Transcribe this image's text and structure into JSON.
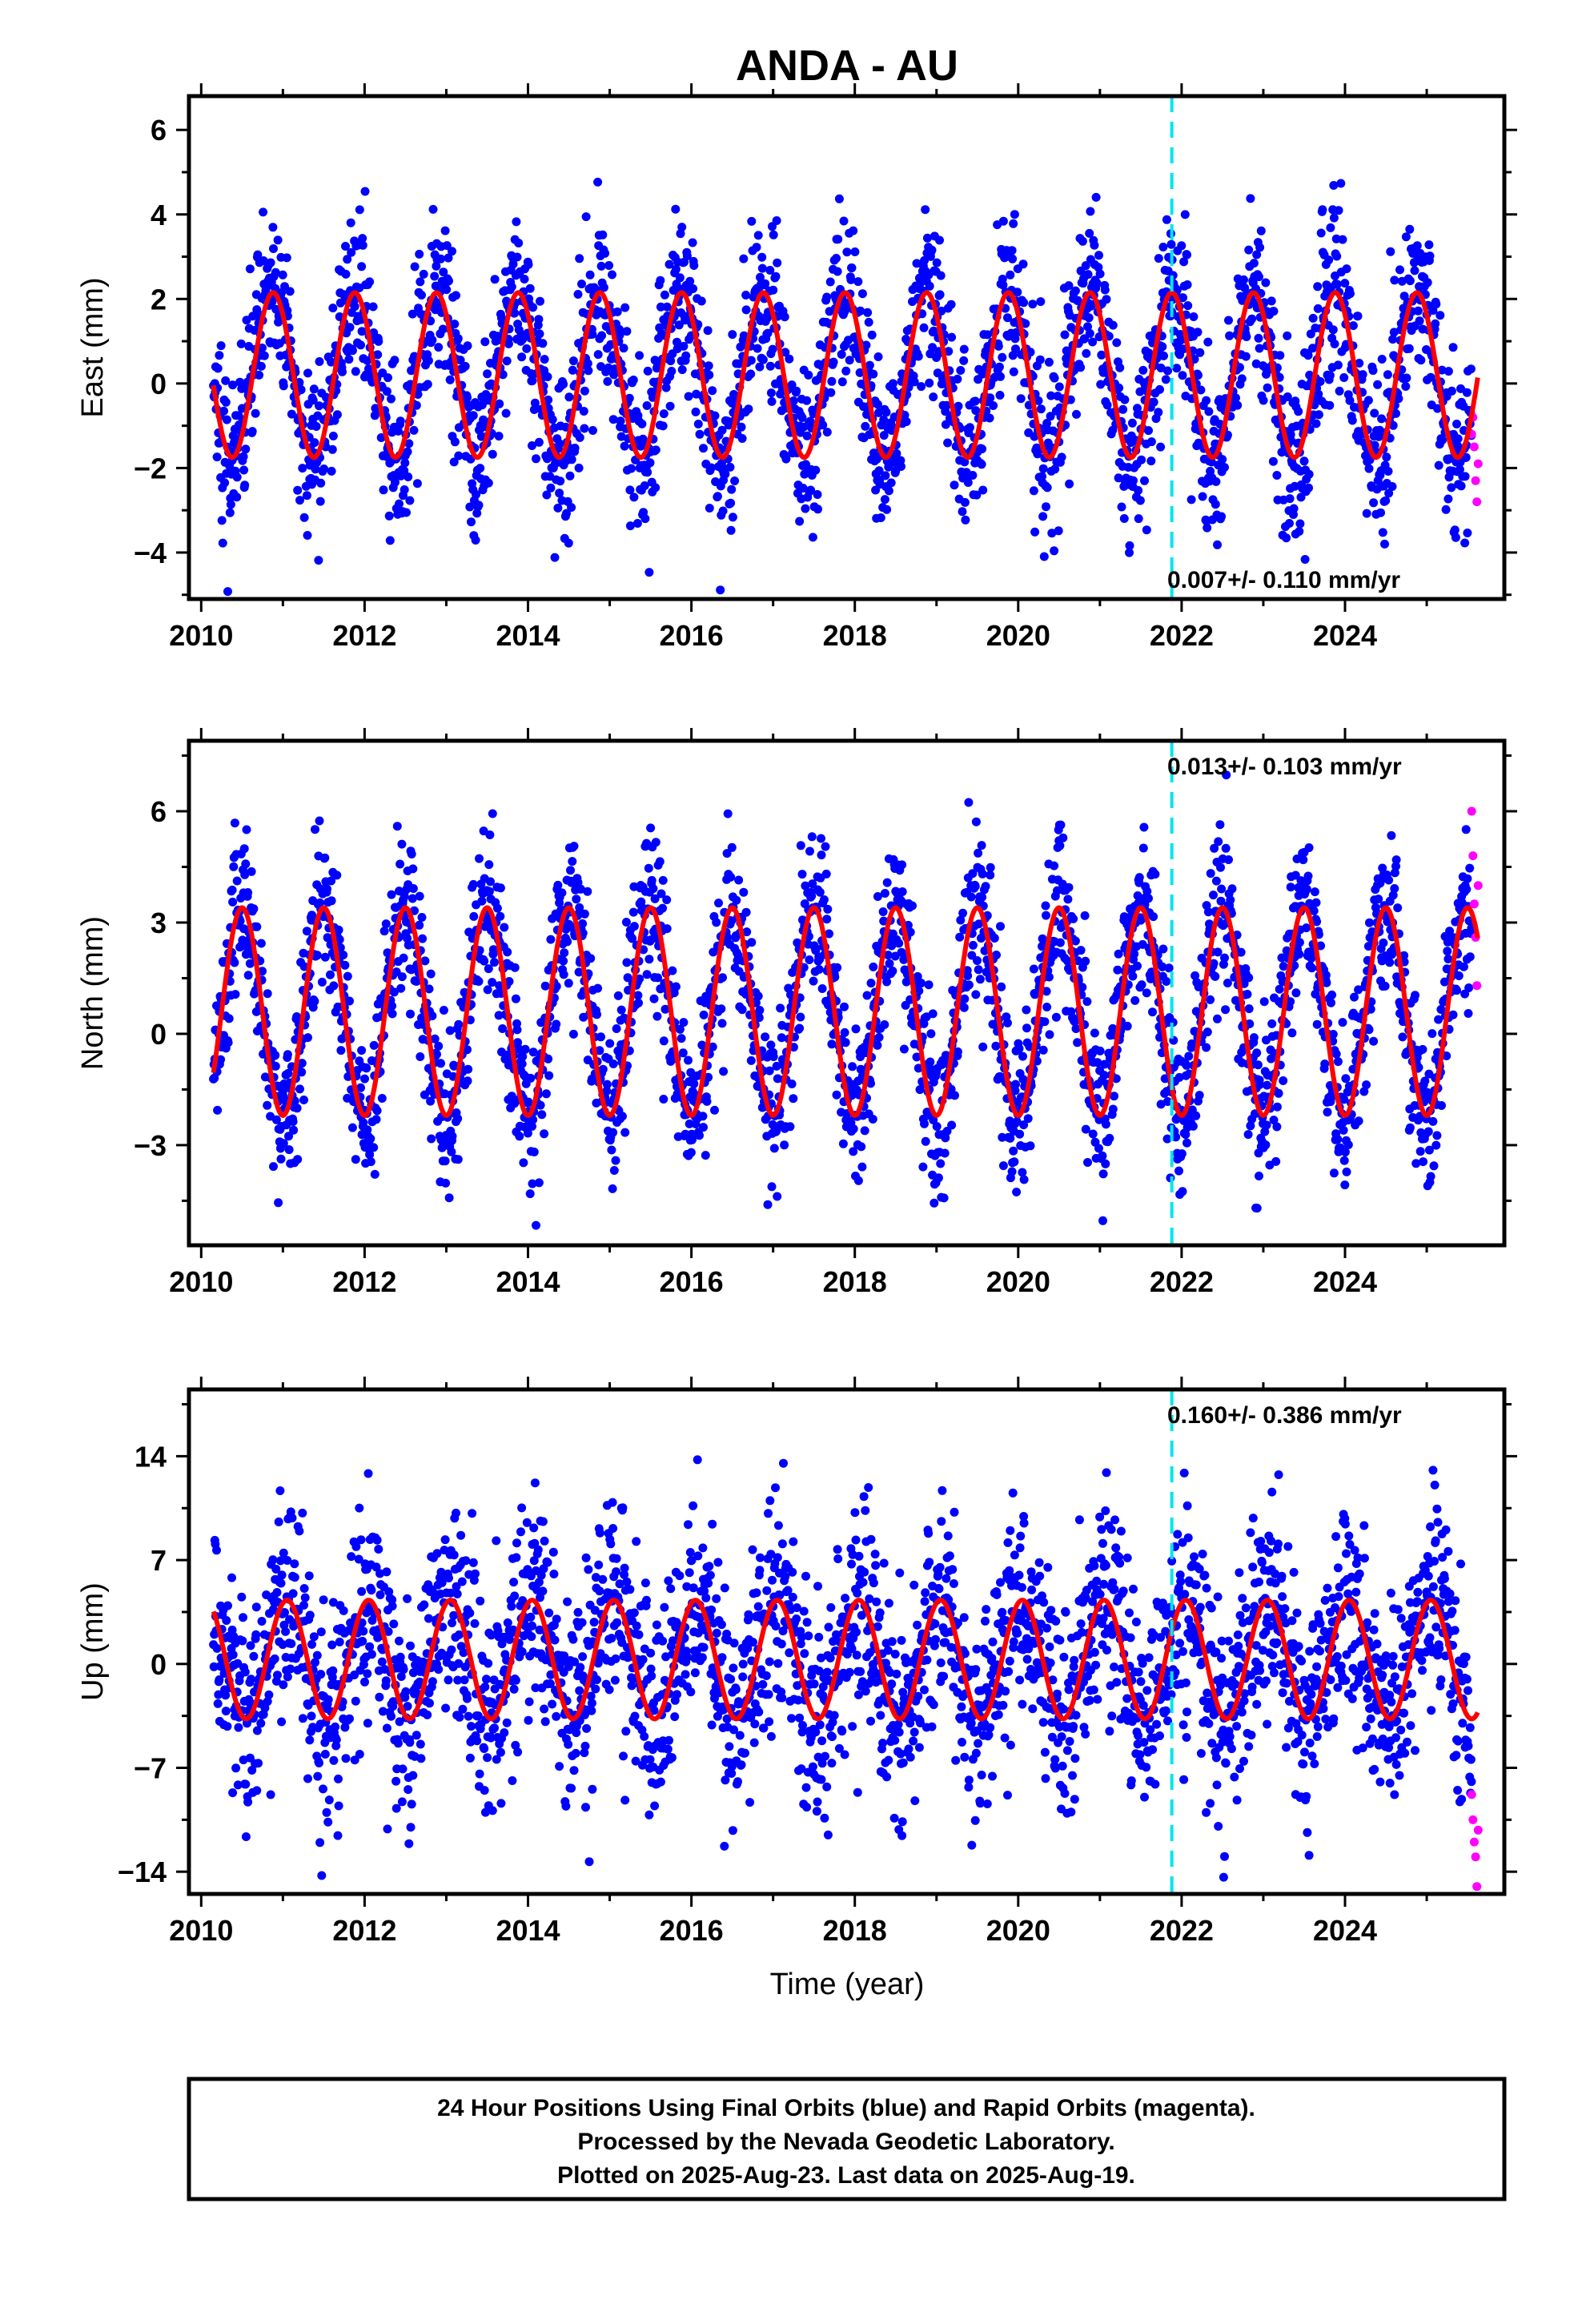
{
  "chart_data": {
    "type": "scatter",
    "title": "ANDA - AU",
    "xlabel": "Time (year)",
    "xlim": [
      2009.85,
      2025.95
    ],
    "x_ticks": [
      2010,
      2012,
      2014,
      2016,
      2018,
      2020,
      2022,
      2024
    ],
    "x_minor_step": 1,
    "data_start": 2010.15,
    "final_end": 2025.55,
    "rapid_end": 2025.63,
    "equipment_change_year": 2021.88,
    "colors": {
      "final": "#0000ff",
      "rapid": "#ff00ff",
      "model": "#ff0000",
      "event": "#00e5ee"
    },
    "series": [
      {
        "name": "Final Orbits (blue)",
        "color": "#0000ff"
      },
      {
        "name": "Rapid Orbits (magenta)",
        "color": "#ff00ff"
      },
      {
        "name": "Model fit",
        "color": "#ff0000"
      }
    ],
    "panels": [
      {
        "key": "east",
        "ylabel": "East (mm)",
        "ylim": [
          -5.1,
          6.8
        ],
        "y_ticks": [
          -4,
          -2,
          0,
          2,
          4,
          6
        ],
        "y_minor_step": 1,
        "rate_label": "0.007+/- 0.110 mm/yr",
        "rate_position": "bottom-right",
        "seasonal": {
          "offset": 0.2,
          "amplitude": 1.95,
          "peak_phase": 0.88
        },
        "noise_sd": 1.0,
        "rapid_values": [
          -1.2,
          -0.8,
          -1.5,
          -2.3,
          -2.8,
          -1.9
        ]
      },
      {
        "key": "north",
        "ylabel": "North (mm)",
        "ylim": [
          -5.7,
          7.9
        ],
        "y_ticks": [
          -3,
          0,
          3,
          6
        ],
        "y_minor_step": 1.5,
        "rate_label": "0.013+/- 0.103 mm/yr",
        "rate_position": "top-right",
        "seasonal": {
          "offset": 0.6,
          "amplitude": 2.8,
          "peak_phase": 0.5
        },
        "noise_sd": 1.1,
        "rapid_values": [
          6.0,
          4.8,
          3.5,
          2.6,
          1.3,
          4.0
        ]
      },
      {
        "key": "up",
        "ylabel": "Up (mm)",
        "ylim": [
          -15.5,
          18.5
        ],
        "y_ticks": [
          -14,
          -7,
          0,
          7,
          14
        ],
        "y_minor_step": 3.5,
        "rate_label": "0.160+/- 0.386 mm/yr",
        "rate_position": "top-right",
        "seasonal": {
          "offset": 0.3,
          "amplitude": 4.0,
          "peak_phase": 0.05
        },
        "noise_sd": 3.6,
        "rapid_values": [
          -8.8,
          -10.5,
          -12.0,
          -13.0,
          -15.0,
          -11.2
        ]
      }
    ]
  },
  "caption": {
    "lines": [
      "24 Hour Positions Using Final Orbits (blue) and Rapid Orbits (magenta).",
      "Processed by the Nevada Geodetic Laboratory.",
      "Plotted on 2025-Aug-23. Last data on 2025-Aug-19."
    ]
  }
}
